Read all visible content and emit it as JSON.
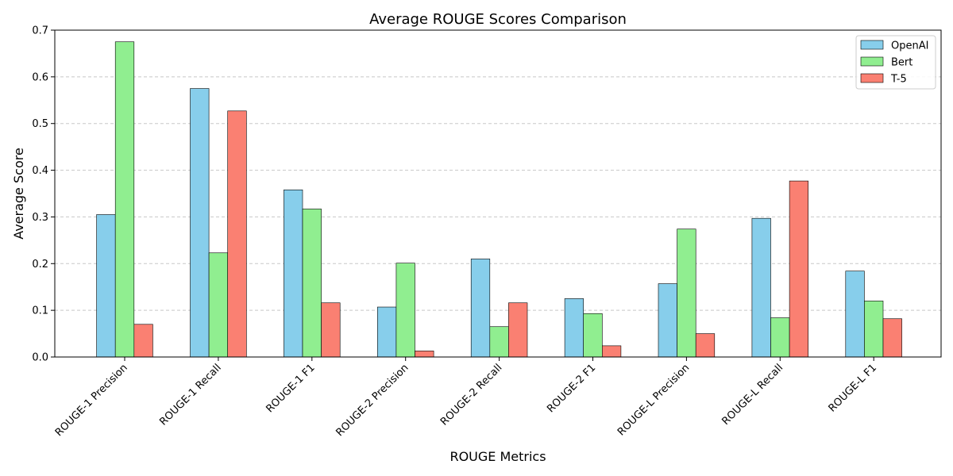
{
  "chart_data": {
    "type": "bar",
    "title": "Average ROUGE Scores Comparison",
    "xlabel": "ROUGE Metrics",
    "ylabel": "Average Score",
    "categories": [
      "ROUGE-1 Precision",
      "ROUGE-1 Recall",
      "ROUGE-1 F1",
      "ROUGE-2 Precision",
      "ROUGE-2 Recall",
      "ROUGE-2 F1",
      "ROUGE-L Precision",
      "ROUGE-L Recall",
      "ROUGE-L F1"
    ],
    "series": [
      {
        "name": "OpenAI",
        "color": "#87ceeb",
        "values": [
          0.305,
          0.575,
          0.358,
          0.107,
          0.21,
          0.125,
          0.157,
          0.297,
          0.184
        ]
      },
      {
        "name": "Bert",
        "color": "#90ee90",
        "values": [
          0.675,
          0.223,
          0.317,
          0.201,
          0.065,
          0.093,
          0.274,
          0.084,
          0.12
        ]
      },
      {
        "name": "T-5",
        "color": "#fa8072",
        "values": [
          0.07,
          0.527,
          0.116,
          0.013,
          0.116,
          0.024,
          0.05,
          0.377,
          0.082
        ]
      }
    ],
    "ylim": [
      0,
      0.7
    ],
    "yticks": [
      "0.0",
      "0.1",
      "0.2",
      "0.3",
      "0.4",
      "0.5",
      "0.6",
      "0.7"
    ],
    "grid": "y-dashed",
    "legend_position": "top-right",
    "xtick_rotation": "45"
  }
}
